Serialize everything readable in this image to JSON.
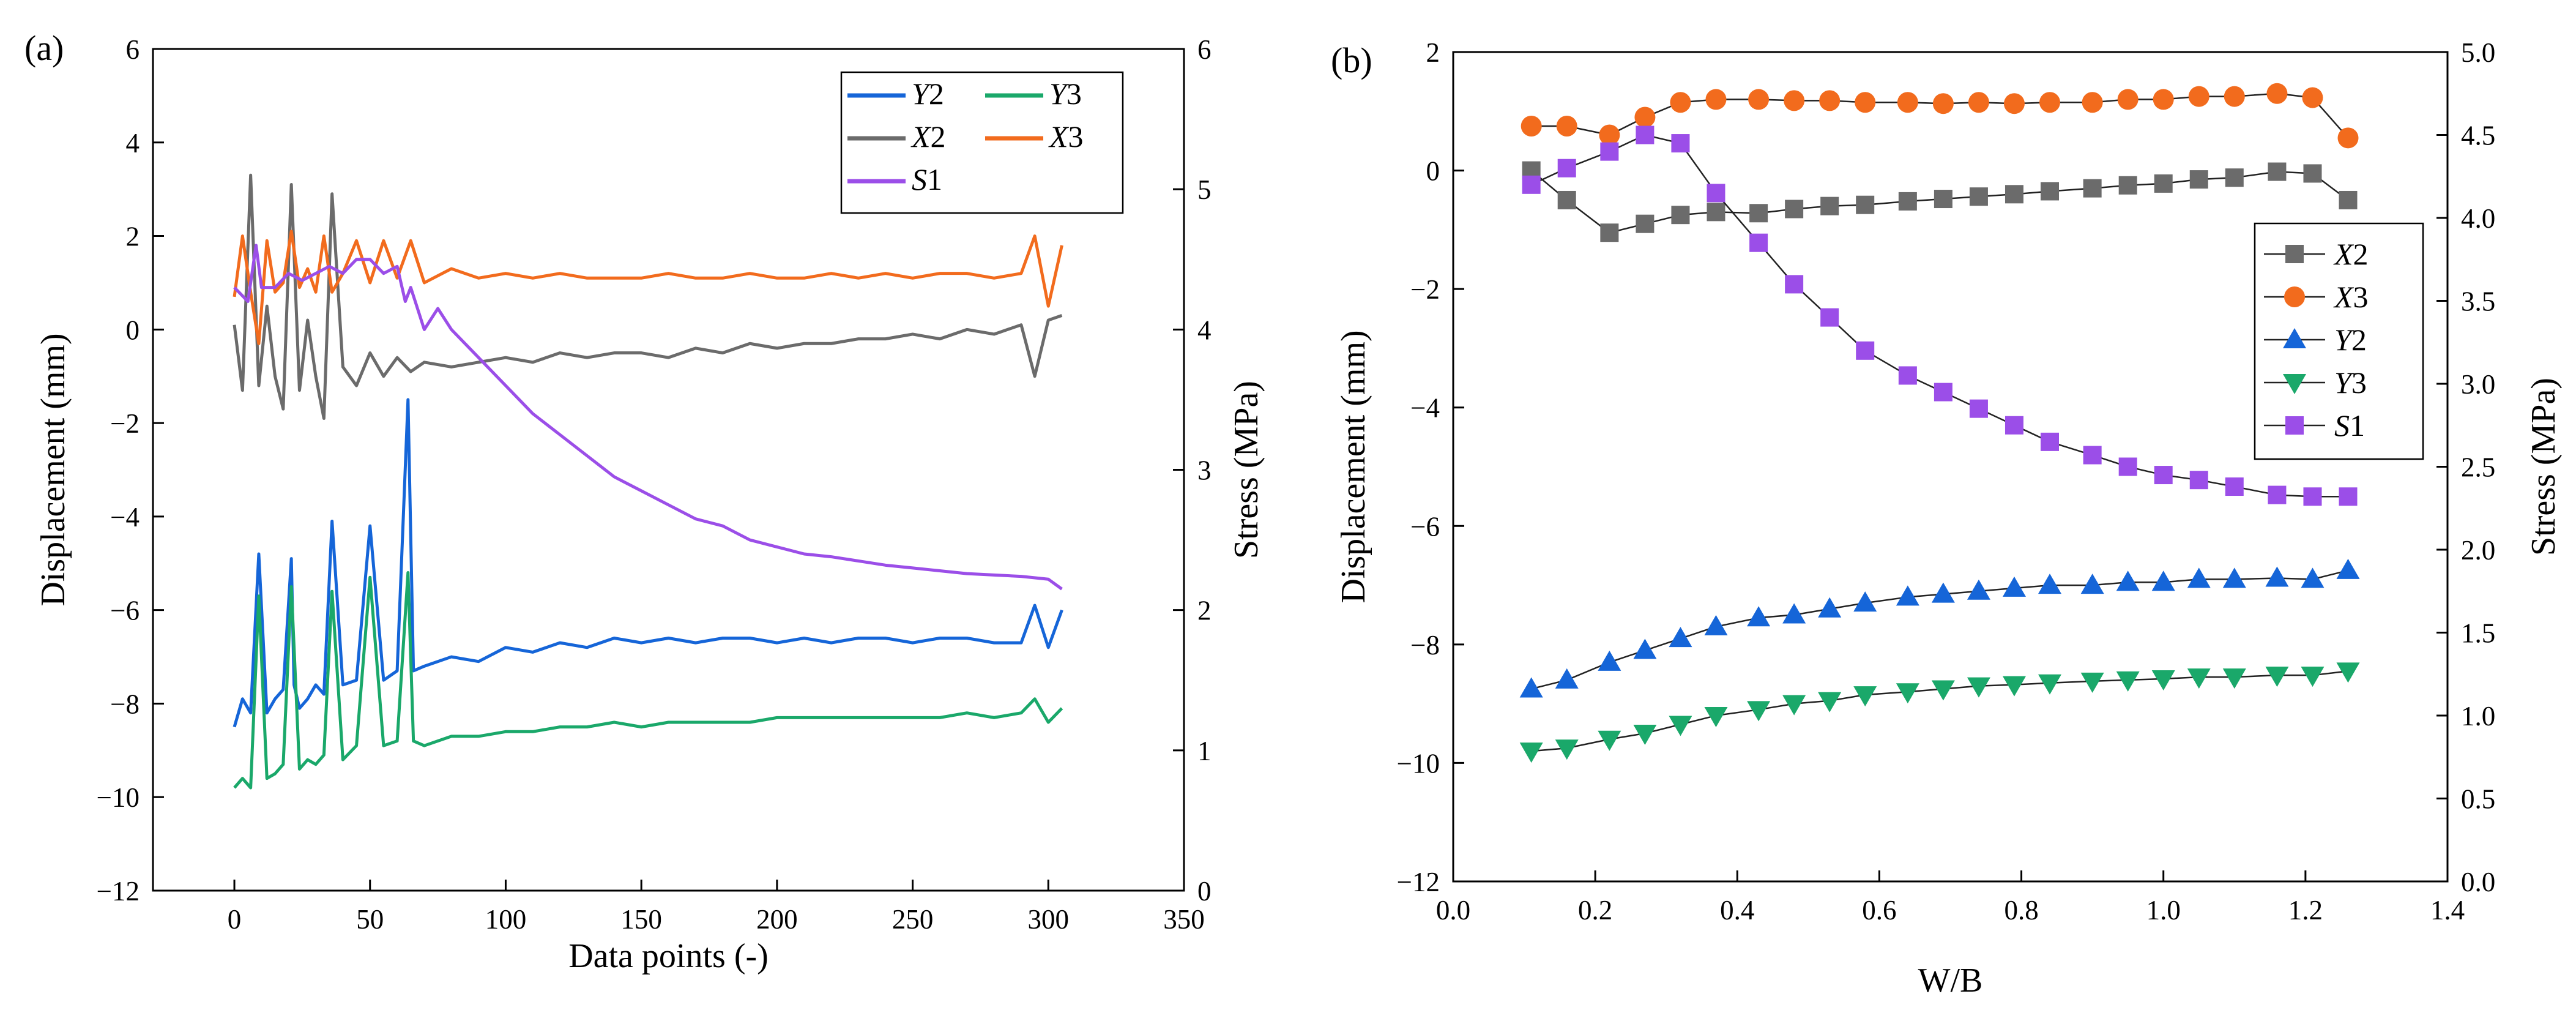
{
  "chart_data": [
    {
      "panel_label": "(a)",
      "type": "line",
      "xlabel": "Data points (-)",
      "ylabel": "Displacement (mm)",
      "y2label": "Stress (MPa)",
      "xlim": [
        -30,
        350
      ],
      "ylim": [
        -12,
        6
      ],
      "y2lim": [
        0,
        6
      ],
      "xticks": [
        "0",
        "50",
        "100",
        "150",
        "200",
        "250",
        "300",
        "350"
      ],
      "yticks": [
        "−12",
        "−10",
        "−8",
        "−6",
        "−4",
        "−2",
        "0",
        "2",
        "4",
        "6"
      ],
      "y2ticks": [
        "0",
        "1",
        "2",
        "3",
        "4",
        "5",
        "6"
      ],
      "legend_position": "top-right",
      "legend": [
        {
          "series": "Y2",
          "letter": "Y",
          "num": "2"
        },
        {
          "series": "Y3",
          "letter": "Y",
          "num": "3"
        },
        {
          "series": "X2",
          "letter": "X",
          "num": "2"
        },
        {
          "series": "X3",
          "letter": "X",
          "num": "3"
        },
        {
          "series": "S1",
          "letter": "S",
          "num": "1"
        }
      ],
      "series": [
        {
          "name": "X2",
          "axis": "left",
          "color": "#6b6b6b",
          "x": [
            0,
            3,
            6,
            9,
            12,
            15,
            18,
            21,
            24,
            27,
            30,
            33,
            36,
            40,
            45,
            50,
            55,
            60,
            65,
            70,
            80,
            90,
            100,
            110,
            120,
            130,
            140,
            150,
            160,
            170,
            180,
            190,
            200,
            210,
            220,
            230,
            240,
            250,
            260,
            270,
            280,
            290,
            295,
            300,
            305
          ],
          "y": [
            0.1,
            -1.3,
            3.3,
            -1.2,
            0.5,
            -1.0,
            -1.7,
            3.1,
            -1.3,
            0.2,
            -1.0,
            -1.9,
            2.9,
            -0.8,
            -1.2,
            -0.5,
            -1.0,
            -0.6,
            -0.9,
            -0.7,
            -0.8,
            -0.7,
            -0.6,
            -0.7,
            -0.5,
            -0.6,
            -0.5,
            -0.5,
            -0.6,
            -0.4,
            -0.5,
            -0.3,
            -0.4,
            -0.3,
            -0.3,
            -0.2,
            -0.2,
            -0.1,
            -0.2,
            0.0,
            -0.1,
            0.1,
            -1.0,
            0.2,
            0.3
          ]
        },
        {
          "name": "X3",
          "axis": "left",
          "color": "#f26b1d",
          "x": [
            0,
            3,
            6,
            9,
            12,
            15,
            18,
            21,
            24,
            27,
            30,
            33,
            36,
            40,
            45,
            50,
            55,
            60,
            65,
            70,
            80,
            90,
            100,
            110,
            120,
            130,
            140,
            150,
            160,
            170,
            180,
            190,
            200,
            210,
            220,
            230,
            240,
            250,
            260,
            270,
            280,
            290,
            295,
            300,
            305
          ],
          "y": [
            0.7,
            2.0,
            0.8,
            -0.3,
            1.9,
            0.8,
            1.0,
            2.1,
            0.9,
            1.3,
            0.8,
            2.0,
            0.8,
            1.2,
            1.9,
            1.0,
            1.9,
            1.1,
            1.9,
            1.0,
            1.3,
            1.1,
            1.2,
            1.1,
            1.2,
            1.1,
            1.1,
            1.1,
            1.2,
            1.1,
            1.1,
            1.2,
            1.1,
            1.1,
            1.2,
            1.1,
            1.2,
            1.1,
            1.2,
            1.2,
            1.1,
            1.2,
            2.0,
            0.5,
            1.8
          ]
        },
        {
          "name": "Y2",
          "axis": "left",
          "color": "#1565d8",
          "x": [
            0,
            3,
            6,
            9,
            12,
            15,
            18,
            21,
            22,
            24,
            27,
            30,
            33,
            36,
            40,
            45,
            50,
            55,
            60,
            64,
            66,
            70,
            80,
            90,
            100,
            110,
            120,
            130,
            140,
            150,
            160,
            170,
            180,
            190,
            200,
            210,
            220,
            230,
            240,
            250,
            260,
            270,
            280,
            290,
            295,
            300,
            305
          ],
          "y": [
            -8.5,
            -7.9,
            -8.2,
            -4.8,
            -8.2,
            -7.9,
            -7.7,
            -4.9,
            -7.6,
            -8.1,
            -7.9,
            -7.6,
            -7.8,
            -4.1,
            -7.6,
            -7.5,
            -4.2,
            -7.5,
            -7.3,
            -1.5,
            -7.3,
            -7.2,
            -7.0,
            -7.1,
            -6.8,
            -6.9,
            -6.7,
            -6.8,
            -6.6,
            -6.7,
            -6.6,
            -6.7,
            -6.6,
            -6.6,
            -6.7,
            -6.6,
            -6.7,
            -6.6,
            -6.6,
            -6.7,
            -6.6,
            -6.6,
            -6.7,
            -6.7,
            -5.9,
            -6.8,
            -6.0
          ]
        },
        {
          "name": "Y3",
          "axis": "left",
          "color": "#1aa86a",
          "x": [
            0,
            3,
            6,
            9,
            12,
            15,
            18,
            21,
            24,
            27,
            30,
            33,
            36,
            40,
            45,
            50,
            55,
            60,
            64,
            66,
            70,
            80,
            90,
            100,
            110,
            120,
            130,
            140,
            150,
            160,
            170,
            180,
            190,
            200,
            210,
            220,
            230,
            240,
            250,
            260,
            270,
            280,
            290,
            295,
            300,
            305
          ],
          "y": [
            -9.8,
            -9.6,
            -9.8,
            -5.7,
            -9.6,
            -9.5,
            -9.3,
            -5.5,
            -9.4,
            -9.2,
            -9.3,
            -9.1,
            -5.6,
            -9.2,
            -8.9,
            -5.3,
            -8.9,
            -8.8,
            -5.2,
            -8.8,
            -8.9,
            -8.7,
            -8.7,
            -8.6,
            -8.6,
            -8.5,
            -8.5,
            -8.4,
            -8.5,
            -8.4,
            -8.4,
            -8.4,
            -8.4,
            -8.3,
            -8.3,
            -8.3,
            -8.3,
            -8.3,
            -8.3,
            -8.3,
            -8.2,
            -8.3,
            -8.2,
            -7.9,
            -8.4,
            -8.1
          ]
        },
        {
          "name": "S1",
          "axis": "right",
          "color": "#9b4ee8",
          "x": [
            0,
            5,
            8,
            10,
            15,
            20,
            25,
            30,
            35,
            40,
            45,
            50,
            55,
            60,
            63,
            65,
            70,
            75,
            80,
            85,
            90,
            95,
            100,
            110,
            120,
            130,
            140,
            150,
            160,
            170,
            180,
            190,
            200,
            210,
            220,
            230,
            240,
            250,
            260,
            270,
            280,
            290,
            300,
            305
          ],
          "y": [
            4.3,
            4.2,
            4.6,
            4.3,
            4.3,
            4.4,
            4.35,
            4.4,
            4.45,
            4.4,
            4.5,
            4.5,
            4.4,
            4.45,
            4.2,
            4.3,
            4.0,
            4.15,
            4.0,
            3.9,
            3.8,
            3.7,
            3.6,
            3.4,
            3.25,
            3.1,
            2.95,
            2.85,
            2.75,
            2.65,
            2.6,
            2.5,
            2.45,
            2.4,
            2.38,
            2.35,
            2.32,
            2.3,
            2.28,
            2.26,
            2.25,
            2.24,
            2.22,
            2.15
          ]
        }
      ]
    },
    {
      "panel_label": "(b)",
      "type": "line",
      "xlabel": "W/B",
      "ylabel": "Displacement (mm)",
      "y2label": "Stress (MPa)",
      "xlim": [
        0.0,
        1.4
      ],
      "ylim": [
        -12,
        2
      ],
      "y2lim": [
        0.0,
        5.0
      ],
      "xticks": [
        "0.0",
        "0.2",
        "0.4",
        "0.6",
        "0.8",
        "1.0",
        "1.2",
        "1.4"
      ],
      "yticks": [
        "−12",
        "−10",
        "−8",
        "−6",
        "−4",
        "−2",
        "0",
        "2"
      ],
      "y2ticks": [
        "0.0",
        "0.5",
        "1.0",
        "1.5",
        "2.0",
        "2.5",
        "3.0",
        "3.5",
        "4.0",
        "4.5",
        "5.0"
      ],
      "legend_position": "center-right",
      "legend": [
        {
          "series": "X2",
          "letter": "X",
          "num": "2"
        },
        {
          "series": "X3",
          "letter": "X",
          "num": "3"
        },
        {
          "series": "Y2",
          "letter": "Y",
          "num": "2"
        },
        {
          "series": "Y3",
          "letter": "Y",
          "num": "3"
        },
        {
          "series": "S1",
          "letter": "S",
          "num": "1"
        }
      ],
      "x": [
        0.11,
        0.16,
        0.22,
        0.27,
        0.32,
        0.37,
        0.43,
        0.48,
        0.53,
        0.58,
        0.64,
        0.69,
        0.74,
        0.79,
        0.84,
        0.9,
        0.95,
        1.0,
        1.05,
        1.1,
        1.16,
        1.21,
        1.26
      ],
      "series": [
        {
          "name": "X2",
          "axis": "left",
          "marker": "square",
          "color": "#6b6b6b",
          "y": [
            0.0,
            -0.5,
            -1.05,
            -0.9,
            -0.75,
            -0.7,
            -0.72,
            -0.65,
            -0.6,
            -0.58,
            -0.52,
            -0.48,
            -0.44,
            -0.4,
            -0.35,
            -0.3,
            -0.25,
            -0.22,
            -0.15,
            -0.12,
            -0.02,
            -0.05,
            -0.5
          ]
        },
        {
          "name": "X3",
          "axis": "left",
          "marker": "circle",
          "color": "#f26b1d",
          "y": [
            0.75,
            0.75,
            0.6,
            0.9,
            1.15,
            1.2,
            1.2,
            1.18,
            1.18,
            1.15,
            1.15,
            1.13,
            1.15,
            1.13,
            1.15,
            1.15,
            1.2,
            1.2,
            1.25,
            1.25,
            1.3,
            1.23,
            0.55
          ]
        },
        {
          "name": "Y2",
          "axis": "left",
          "marker": "triangle-up",
          "color": "#1565d8",
          "y": [
            -8.75,
            -8.6,
            -8.3,
            -8.1,
            -7.9,
            -7.7,
            -7.55,
            -7.5,
            -7.4,
            -7.3,
            -7.2,
            -7.15,
            -7.1,
            -7.05,
            -7.0,
            -7.0,
            -6.95,
            -6.95,
            -6.9,
            -6.9,
            -6.88,
            -6.9,
            -6.75
          ]
        },
        {
          "name": "Y3",
          "axis": "left",
          "marker": "triangle-down",
          "color": "#1aa86a",
          "y": [
            -9.8,
            -9.75,
            -9.6,
            -9.5,
            -9.35,
            -9.2,
            -9.1,
            -9.0,
            -8.95,
            -8.85,
            -8.8,
            -8.75,
            -8.7,
            -8.68,
            -8.65,
            -8.62,
            -8.6,
            -8.58,
            -8.55,
            -8.55,
            -8.52,
            -8.52,
            -8.45
          ]
        },
        {
          "name": "S1",
          "axis": "right",
          "marker": "square",
          "color": "#9b4ee8",
          "y": [
            4.2,
            4.3,
            4.4,
            4.5,
            4.45,
            4.15,
            3.85,
            3.6,
            3.4,
            3.2,
            3.05,
            2.95,
            2.85,
            2.75,
            2.65,
            2.57,
            2.5,
            2.45,
            2.42,
            2.38,
            2.33,
            2.32,
            2.32
          ]
        }
      ]
    }
  ]
}
